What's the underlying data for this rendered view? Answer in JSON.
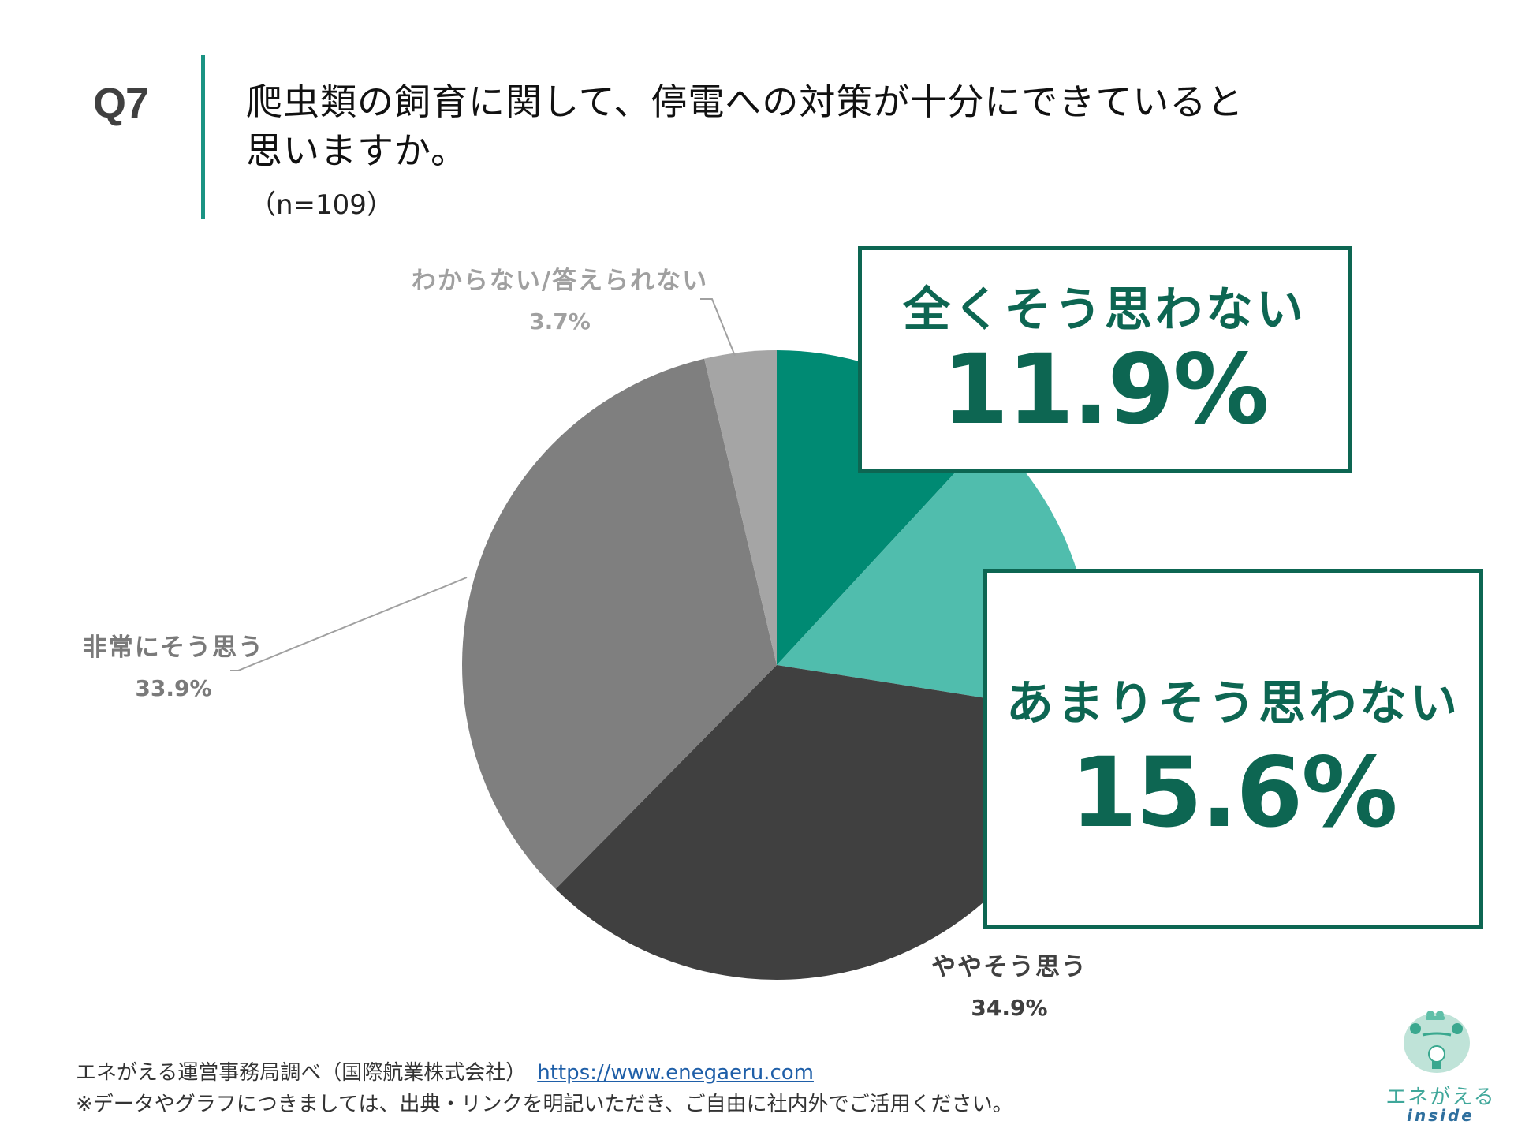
{
  "header": {
    "question_number": "Q7",
    "title_line1": "爬虫類の飼育に関して、停電への対策が十分にできていると",
    "title_line2": "思いますか。",
    "sample_size": "（n=109）"
  },
  "callouts": [
    {
      "label": "全くそう思わない",
      "value": "11.9%"
    },
    {
      "label": "あまりそう思わない",
      "value": "15.6%"
    }
  ],
  "labels": {
    "unknown": {
      "label": "わからない/答えられない",
      "value": "3.7%"
    },
    "strongly_agree": {
      "label": "非常にそう思う",
      "value": "33.9%"
    },
    "somewhat_agree": {
      "label": "ややそう思う",
      "value": "34.9%"
    }
  },
  "footer": {
    "source": "エネがえる運営事務局調べ（国際航業株式会社）",
    "link_text": "https://www.enegaeru.com",
    "note": "※データやグラフにつきましては、出典・リンクを明記いただき、ご自由に社内外でご活用ください。"
  },
  "logo": {
    "name": "エネがえる",
    "sub": "inside"
  },
  "colors": {
    "accent": "#0d6652",
    "bar": "#1a9383",
    "slice_not_at_all": "#008a73",
    "slice_not_much": "#50bdad",
    "slice_somewhat": "#404040",
    "slice_strongly": "#7f7f7f",
    "slice_unknown": "#a5a5a5"
  },
  "chart_data": {
    "type": "pie",
    "title": "爬虫類の飼育に関して、停電への対策が十分にできていると思いますか。",
    "subtitle": "（n=109）",
    "start_angle": "12 o'clock, clockwise",
    "categories": [
      "全くそう思わない",
      "あまりそう思わない",
      "ややそう思う",
      "非常にそう思う",
      "わからない/答えられない"
    ],
    "values": [
      11.9,
      15.6,
      34.9,
      33.9,
      3.7
    ],
    "unit": "%",
    "colors": [
      "#008a73",
      "#50bdad",
      "#404040",
      "#7f7f7f",
      "#a5a5a5"
    ],
    "n": 109
  }
}
